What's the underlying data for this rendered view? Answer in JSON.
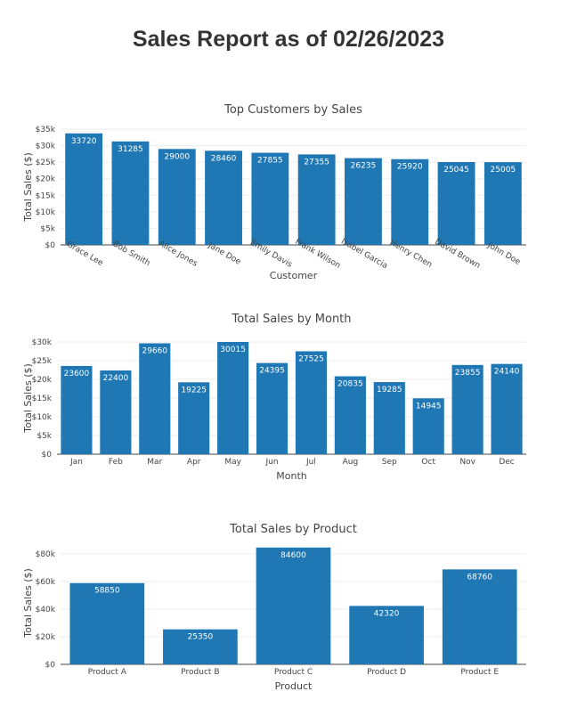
{
  "report": {
    "title": "Sales Report as of 02/26/2023"
  },
  "colors": {
    "bar": "#1f77b4",
    "grid": "#eeeeee",
    "axis": "#444444"
  },
  "chart_data": [
    {
      "type": "bar",
      "title": "Top Customers by Sales",
      "xlabel": "Customer",
      "ylabel": "Total Sales ($)",
      "categories": [
        "Grace Lee",
        "Bob Smith",
        "Alice Jones",
        "Jane Doe",
        "Emily Davis",
        "Frank Wilson",
        "Isabel Garcia",
        "Henry Chen",
        "David Brown",
        "John Doe"
      ],
      "values": [
        33720,
        31285,
        29000,
        28460,
        27855,
        27355,
        26235,
        25920,
        25045,
        25005
      ],
      "ylim": [
        0,
        35000
      ],
      "yticks": [
        0,
        5000,
        10000,
        15000,
        20000,
        25000,
        30000,
        35000
      ],
      "ytick_labels": [
        "$0",
        "$5k",
        "$10k",
        "$15k",
        "$20k",
        "$25k",
        "$30k",
        "$35k"
      ],
      "x_tick_rotation": 30,
      "grid": true
    },
    {
      "type": "bar",
      "title": "Total Sales by Month",
      "xlabel": "Month",
      "ylabel": "Total Sales ($)",
      "categories": [
        "Jan",
        "Feb",
        "Mar",
        "Apr",
        "May",
        "Jun",
        "Jul",
        "Aug",
        "Sep",
        "Oct",
        "Nov",
        "Dec"
      ],
      "values": [
        23600,
        22400,
        29660,
        19225,
        30015,
        24395,
        27525,
        20835,
        19285,
        14945,
        23855,
        24140
      ],
      "ylim": [
        0,
        30015
      ],
      "yticks": [
        0,
        5000,
        10000,
        15000,
        20000,
        25000,
        30000
      ],
      "ytick_labels": [
        "$0",
        "$5k",
        "$10k",
        "$15k",
        "$20k",
        "$25k",
        "$30k"
      ],
      "x_tick_rotation": 0,
      "grid": true
    },
    {
      "type": "bar",
      "title": "Total Sales by Product",
      "xlabel": "Product",
      "ylabel": "Total Sales ($)",
      "categories": [
        "Product A",
        "Product B",
        "Product C",
        "Product D",
        "Product E"
      ],
      "values": [
        58850,
        25350,
        84600,
        42320,
        68760
      ],
      "ylim": [
        0,
        89000
      ],
      "yticks": [
        0,
        20000,
        40000,
        60000,
        80000
      ],
      "ytick_labels": [
        "$0",
        "$20k",
        "$40k",
        "$60k",
        "$80k"
      ],
      "x_tick_rotation": 0,
      "grid": true
    }
  ]
}
